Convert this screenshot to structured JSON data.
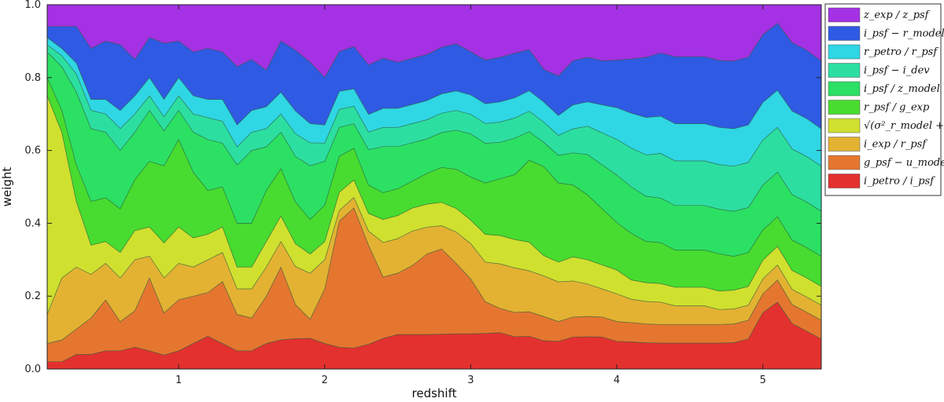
{
  "chart_data": {
    "type": "area",
    "stacked": true,
    "xlabel": "redshift",
    "ylabel": "weight",
    "xlim": [
      0.1,
      5.4
    ],
    "ylim": [
      0.0,
      1.0
    ],
    "x_ticks": [
      1,
      2,
      3,
      4,
      5
    ],
    "x_tick_labels": [
      "1",
      "2",
      "3",
      "4",
      "5"
    ],
    "y_ticks": [
      0.0,
      0.2,
      0.4,
      0.6,
      0.8,
      1.0
    ],
    "y_tick_labels": [
      "0.0",
      "0.2",
      "0.4",
      "0.6",
      "0.8",
      "1.0"
    ],
    "grid": false,
    "legend_position": "outside-right",
    "x": [
      0.1,
      0.2,
      0.3,
      0.4,
      0.5,
      0.6,
      0.7,
      0.8,
      0.9,
      1.0,
      1.1,
      1.2,
      1.3,
      1.4,
      1.5,
      1.6,
      1.7,
      1.8,
      1.9,
      2.0,
      2.1,
      2.2,
      2.3,
      2.4,
      2.5,
      2.6,
      2.7,
      2.8,
      2.9,
      3.0,
      3.1,
      3.2,
      3.3,
      3.4,
      3.5,
      3.6,
      3.7,
      3.8,
      3.9,
      4.0,
      4.1,
      4.2,
      4.3,
      4.4,
      4.5,
      4.6,
      4.7,
      4.8,
      4.9,
      5.0,
      5.1,
      5.2,
      5.3,
      5.4
    ],
    "series": [
      {
        "name": "ipetro/ipsf",
        "legend_label": "i_petro / i_psf",
        "color": "#e3312f",
        "values": [
          0.02,
          0.02,
          0.04,
          0.04,
          0.05,
          0.05,
          0.06,
          0.05,
          0.04,
          0.05,
          0.07,
          0.09,
          0.07,
          0.05,
          0.05,
          0.07,
          0.08,
          0.08,
          0.08,
          0.07,
          0.06,
          0.06,
          0.07,
          0.08,
          0.09,
          0.09,
          0.09,
          0.09,
          0.09,
          0.09,
          0.09,
          0.09,
          0.08,
          0.08,
          0.07,
          0.07,
          0.08,
          0.08,
          0.08,
          0.07,
          0.07,
          0.07,
          0.07,
          0.07,
          0.07,
          0.07,
          0.07,
          0.07,
          0.08,
          0.15,
          0.18,
          0.12,
          0.1,
          0.08
        ]
      },
      {
        "name": "gpsf-umodel",
        "legend_label": "g_psf − u_model",
        "color": "#e57630",
        "values": [
          0.05,
          0.06,
          0.07,
          0.1,
          0.14,
          0.08,
          0.1,
          0.2,
          0.12,
          0.14,
          0.13,
          0.12,
          0.17,
          0.1,
          0.09,
          0.13,
          0.2,
          0.09,
          0.05,
          0.15,
          0.35,
          0.4,
          0.28,
          0.16,
          0.16,
          0.18,
          0.21,
          0.22,
          0.18,
          0.14,
          0.08,
          0.06,
          0.06,
          0.06,
          0.06,
          0.05,
          0.05,
          0.05,
          0.05,
          0.05,
          0.05,
          0.05,
          0.05,
          0.05,
          0.05,
          0.05,
          0.05,
          0.05,
          0.05,
          0.05,
          0.06,
          0.05,
          0.05,
          0.05
        ]
      },
      {
        "name": "iexp/rpsf",
        "legend_label": "i_exp / r_psf",
        "color": "#e4b232",
        "values": [
          0.08,
          0.17,
          0.17,
          0.12,
          0.1,
          0.12,
          0.14,
          0.06,
          0.1,
          0.1,
          0.08,
          0.09,
          0.08,
          0.07,
          0.08,
          0.08,
          0.07,
          0.1,
          0.12,
          0.08,
          0.03,
          0.03,
          0.04,
          0.09,
          0.09,
          0.09,
          0.07,
          0.06,
          0.08,
          0.09,
          0.1,
          0.11,
          0.11,
          0.1,
          0.1,
          0.1,
          0.09,
          0.08,
          0.07,
          0.07,
          0.06,
          0.06,
          0.06,
          0.05,
          0.05,
          0.05,
          0.04,
          0.04,
          0.04,
          0.04,
          0.04,
          0.04,
          0.04,
          0.04
        ]
      },
      {
        "name": "sqrt(sigma2)",
        "legend_label": "√(σ²_r_model + σ²_r_dev)",
        "color": "#d0e02f",
        "values": [
          0.6,
          0.4,
          0.18,
          0.08,
          0.06,
          0.07,
          0.08,
          0.08,
          0.1,
          0.1,
          0.08,
          0.07,
          0.07,
          0.06,
          0.06,
          0.07,
          0.07,
          0.06,
          0.05,
          0.05,
          0.05,
          0.05,
          0.05,
          0.06,
          0.06,
          0.06,
          0.06,
          0.06,
          0.06,
          0.06,
          0.07,
          0.07,
          0.07,
          0.07,
          0.05,
          0.05,
          0.06,
          0.06,
          0.06,
          0.06,
          0.05,
          0.05,
          0.05,
          0.05,
          0.05,
          0.05,
          0.05,
          0.05,
          0.05,
          0.05,
          0.05,
          0.05,
          0.05,
          0.05
        ]
      },
      {
        "name": "rpsf/gexp",
        "legend_label": "r_psf / g_exp",
        "color": "#47dc2f",
        "values": [
          0.05,
          0.06,
          0.1,
          0.12,
          0.12,
          0.12,
          0.14,
          0.18,
          0.22,
          0.24,
          0.18,
          0.12,
          0.11,
          0.12,
          0.12,
          0.14,
          0.13,
          0.11,
          0.09,
          0.1,
          0.1,
          0.09,
          0.08,
          0.07,
          0.07,
          0.07,
          0.08,
          0.09,
          0.1,
          0.11,
          0.13,
          0.14,
          0.16,
          0.2,
          0.22,
          0.2,
          0.18,
          0.16,
          0.14,
          0.12,
          0.12,
          0.11,
          0.11,
          0.1,
          0.1,
          0.1,
          0.1,
          0.09,
          0.09,
          0.08,
          0.08,
          0.08,
          0.08,
          0.08
        ]
      },
      {
        "name": "ipsf/zmodel",
        "legend_label": "i_psf / z_model",
        "color": "#2ce064",
        "values": [
          0.07,
          0.12,
          0.2,
          0.2,
          0.18,
          0.16,
          0.13,
          0.14,
          0.1,
          0.08,
          0.11,
          0.14,
          0.12,
          0.16,
          0.2,
          0.12,
          0.1,
          0.12,
          0.14,
          0.12,
          0.08,
          0.07,
          0.1,
          0.12,
          0.11,
          0.1,
          0.09,
          0.09,
          0.1,
          0.11,
          0.1,
          0.09,
          0.09,
          0.07,
          0.06,
          0.07,
          0.08,
          0.1,
          0.11,
          0.12,
          0.12,
          0.12,
          0.12,
          0.12,
          0.12,
          0.12,
          0.12,
          0.12,
          0.12,
          0.12,
          0.12,
          0.12,
          0.12,
          0.12
        ]
      },
      {
        "name": "ipsf-idev",
        "legend_label": "i_psf − i_dev",
        "color": "#2cdfa0",
        "values": [
          0.02,
          0.03,
          0.05,
          0.05,
          0.05,
          0.06,
          0.05,
          0.04,
          0.04,
          0.04,
          0.05,
          0.06,
          0.06,
          0.05,
          0.05,
          0.05,
          0.05,
          0.06,
          0.06,
          0.05,
          0.05,
          0.05,
          0.05,
          0.05,
          0.05,
          0.05,
          0.05,
          0.05,
          0.05,
          0.05,
          0.05,
          0.05,
          0.05,
          0.05,
          0.05,
          0.05,
          0.06,
          0.07,
          0.08,
          0.09,
          0.1,
          0.11,
          0.12,
          0.12,
          0.12,
          0.12,
          0.12,
          0.12,
          0.12,
          0.12,
          0.12,
          0.12,
          0.12,
          0.12
        ]
      },
      {
        "name": "rpetro/rpsf",
        "legend_label": "r_petro / r_psf",
        "color": "#2fd6e4",
        "values": [
          0.02,
          0.02,
          0.03,
          0.03,
          0.04,
          0.05,
          0.05,
          0.05,
          0.05,
          0.05,
          0.05,
          0.05,
          0.06,
          0.06,
          0.06,
          0.06,
          0.06,
          0.06,
          0.05,
          0.05,
          0.05,
          0.05,
          0.05,
          0.05,
          0.05,
          0.05,
          0.05,
          0.05,
          0.05,
          0.05,
          0.05,
          0.05,
          0.05,
          0.05,
          0.05,
          0.05,
          0.06,
          0.06,
          0.07,
          0.08,
          0.09,
          0.1,
          0.1,
          0.1,
          0.1,
          0.1,
          0.1,
          0.1,
          0.1,
          0.1,
          0.1,
          0.1,
          0.1,
          0.1
        ]
      },
      {
        "name": "ipsf-rmodel",
        "legend_label": "i_psf − r_model",
        "color": "#2f5ae4",
        "values": [
          0.03,
          0.06,
          0.1,
          0.14,
          0.16,
          0.18,
          0.1,
          0.11,
          0.16,
          0.1,
          0.12,
          0.14,
          0.13,
          0.16,
          0.14,
          0.1,
          0.14,
          0.16,
          0.16,
          0.13,
          0.11,
          0.12,
          0.14,
          0.13,
          0.12,
          0.12,
          0.12,
          0.12,
          0.12,
          0.11,
          0.11,
          0.11,
          0.11,
          0.1,
          0.08,
          0.1,
          0.11,
          0.11,
          0.11,
          0.12,
          0.14,
          0.16,
          0.17,
          0.18,
          0.18,
          0.18,
          0.18,
          0.18,
          0.18,
          0.18,
          0.18,
          0.18,
          0.18,
          0.18
        ]
      },
      {
        "name": "zexp/zpsf",
        "legend_label": "z_exp / z_psf",
        "color": "#a431e3",
        "values": [
          0.06,
          0.06,
          0.06,
          0.12,
          0.1,
          0.11,
          0.15,
          0.09,
          0.11,
          0.1,
          0.13,
          0.12,
          0.13,
          0.17,
          0.15,
          0.18,
          0.1,
          0.12,
          0.15,
          0.2,
          0.13,
          0.12,
          0.17,
          0.14,
          0.15,
          0.14,
          0.13,
          0.11,
          0.1,
          0.12,
          0.14,
          0.13,
          0.12,
          0.11,
          0.16,
          0.18,
          0.14,
          0.13,
          0.14,
          0.14,
          0.14,
          0.14,
          0.13,
          0.14,
          0.14,
          0.14,
          0.15,
          0.15,
          0.14,
          0.08,
          0.05,
          0.1,
          0.12,
          0.15
        ]
      }
    ]
  }
}
